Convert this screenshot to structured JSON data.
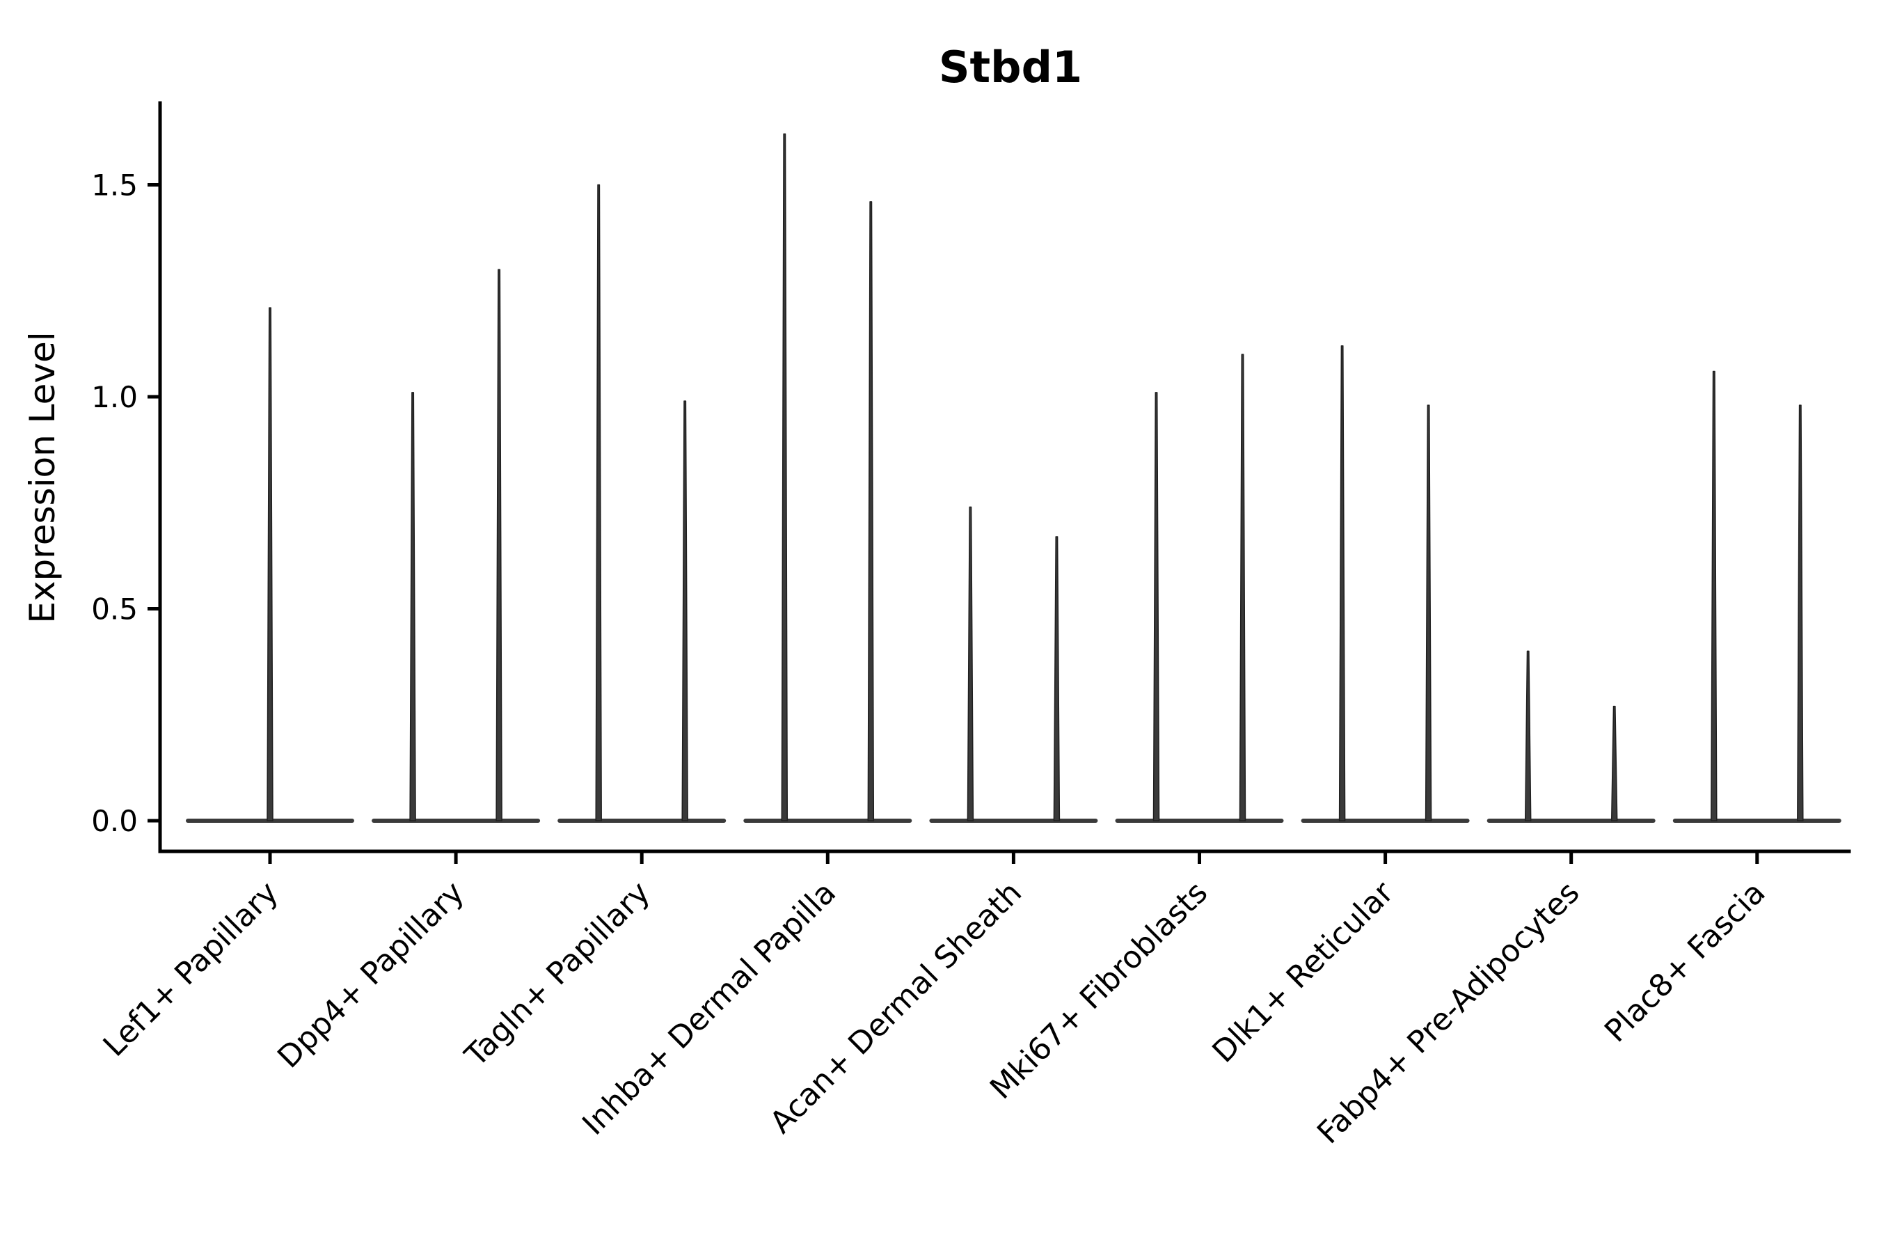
{
  "chart_data": {
    "type": "violin",
    "title": "Stbd1",
    "xlabel": "",
    "ylabel": "Expression Level",
    "ylim": [
      -0.07,
      1.69
    ],
    "yticks": [
      "0.0",
      "0.5",
      "1.0",
      "1.5"
    ],
    "grid": false,
    "legend": "none",
    "violin_color": "#3a3a3a",
    "violin_edge_color": "#1f1f1f",
    "axis_color": "#000000",
    "categories": [
      "Lef1+ Papillary",
      "Dpp4+ Papillary",
      "Tagln+ Papillary",
      "Inhba+ Dermal Papilla",
      "Acan+ Dermal Sheath",
      "Mki67+ Fibroblasts",
      "Dlk1+ Reticular",
      "Fabp4+ Pre-Adipocytes",
      "Plac8+ Fascia"
    ],
    "violins_per_category": [
      [
        1.21
      ],
      [
        1.01,
        1.3
      ],
      [
        1.5,
        0.99
      ],
      [
        1.62,
        1.46
      ],
      [
        0.74,
        0.67
      ],
      [
        1.01,
        1.1
      ],
      [
        1.12,
        0.98
      ],
      [
        0.4,
        0.27
      ],
      [
        1.06,
        0.98
      ]
    ]
  }
}
